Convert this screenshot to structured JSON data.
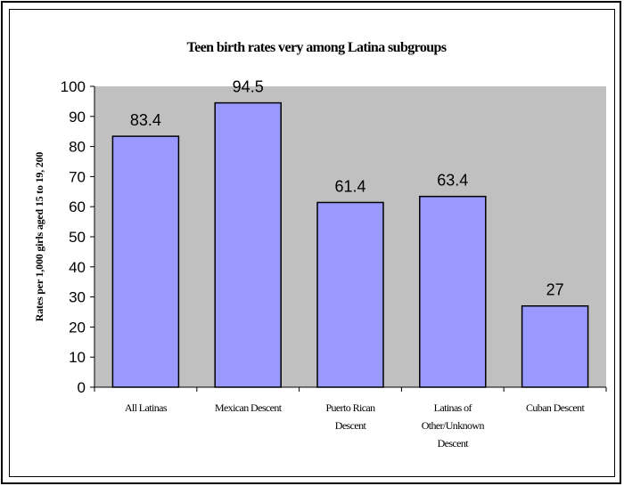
{
  "chart_data": {
    "type": "bar",
    "title": "Teen birth rates very among Latina subgroups",
    "xlabel": "",
    "ylabel": "Rates per 1,000 girls aged 15 to 19, 200",
    "categories": [
      [
        "All Latinas"
      ],
      [
        "Mexican Descent"
      ],
      [
        "Puerto Rican",
        "Descent"
      ],
      [
        "Latinas of",
        "Other/Unknown",
        "Descent"
      ],
      [
        "Cuban Descent"
      ]
    ],
    "values": [
      83.4,
      94.5,
      61.4,
      63.4,
      27
    ],
    "data_labels": [
      "83.4",
      "94.5",
      "61.4",
      "63.4",
      "27"
    ],
    "yticks": [
      "0",
      "10",
      "20",
      "30",
      "40",
      "50",
      "60",
      "70",
      "80",
      "90",
      "100"
    ],
    "ylim": [
      0,
      100
    ],
    "grid": false,
    "legend": "none",
    "colors": {
      "plot_background": "#c0c0c0",
      "bar_fill": "#9999ff",
      "bar_stroke": "#000000"
    }
  }
}
